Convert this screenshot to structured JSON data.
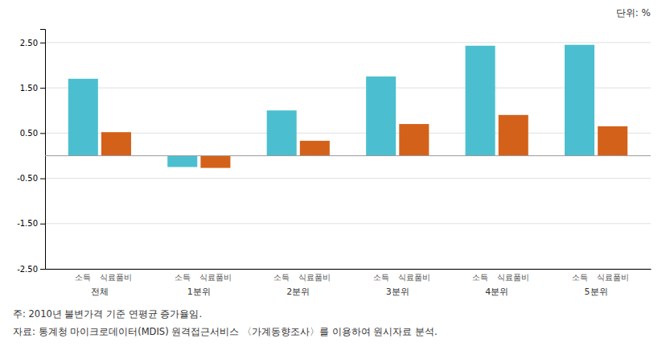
{
  "chart_data": {
    "type": "bar",
    "categories": [
      "전체",
      "1분위",
      "2분위",
      "3분위",
      "4분위",
      "5분위"
    ],
    "series": [
      {
        "name": "소득",
        "color": "#4BBFCF",
        "values": [
          1.7,
          -0.25,
          1.0,
          1.75,
          2.43,
          2.45
        ]
      },
      {
        "name": "식료품비",
        "color": "#D4611A",
        "values": [
          0.52,
          -0.27,
          0.33,
          0.7,
          0.9,
          0.65
        ]
      }
    ],
    "ylim": [
      -2.5,
      2.8
    ],
    "yticks": [
      {
        "value": -2.5,
        "label": "-2.50"
      },
      {
        "value": -1.5,
        "label": "-1.50"
      },
      {
        "value": -0.5,
        "label": "-0.50"
      },
      {
        "value": 0.5,
        "label": "0.50"
      },
      {
        "value": 1.5,
        "label": "1.50"
      },
      {
        "value": 2.5,
        "label": "2.50"
      }
    ],
    "grid": true,
    "annotations": [
      "단위:  %",
      "주: 2010년 불변가격 기준 연평균 증가율임.",
      "자료: 통계청 마이크로데이터(MDIS) 원격접근서비스 〈가계동향조사〉를 이용하여 원시자료 분석."
    ]
  }
}
